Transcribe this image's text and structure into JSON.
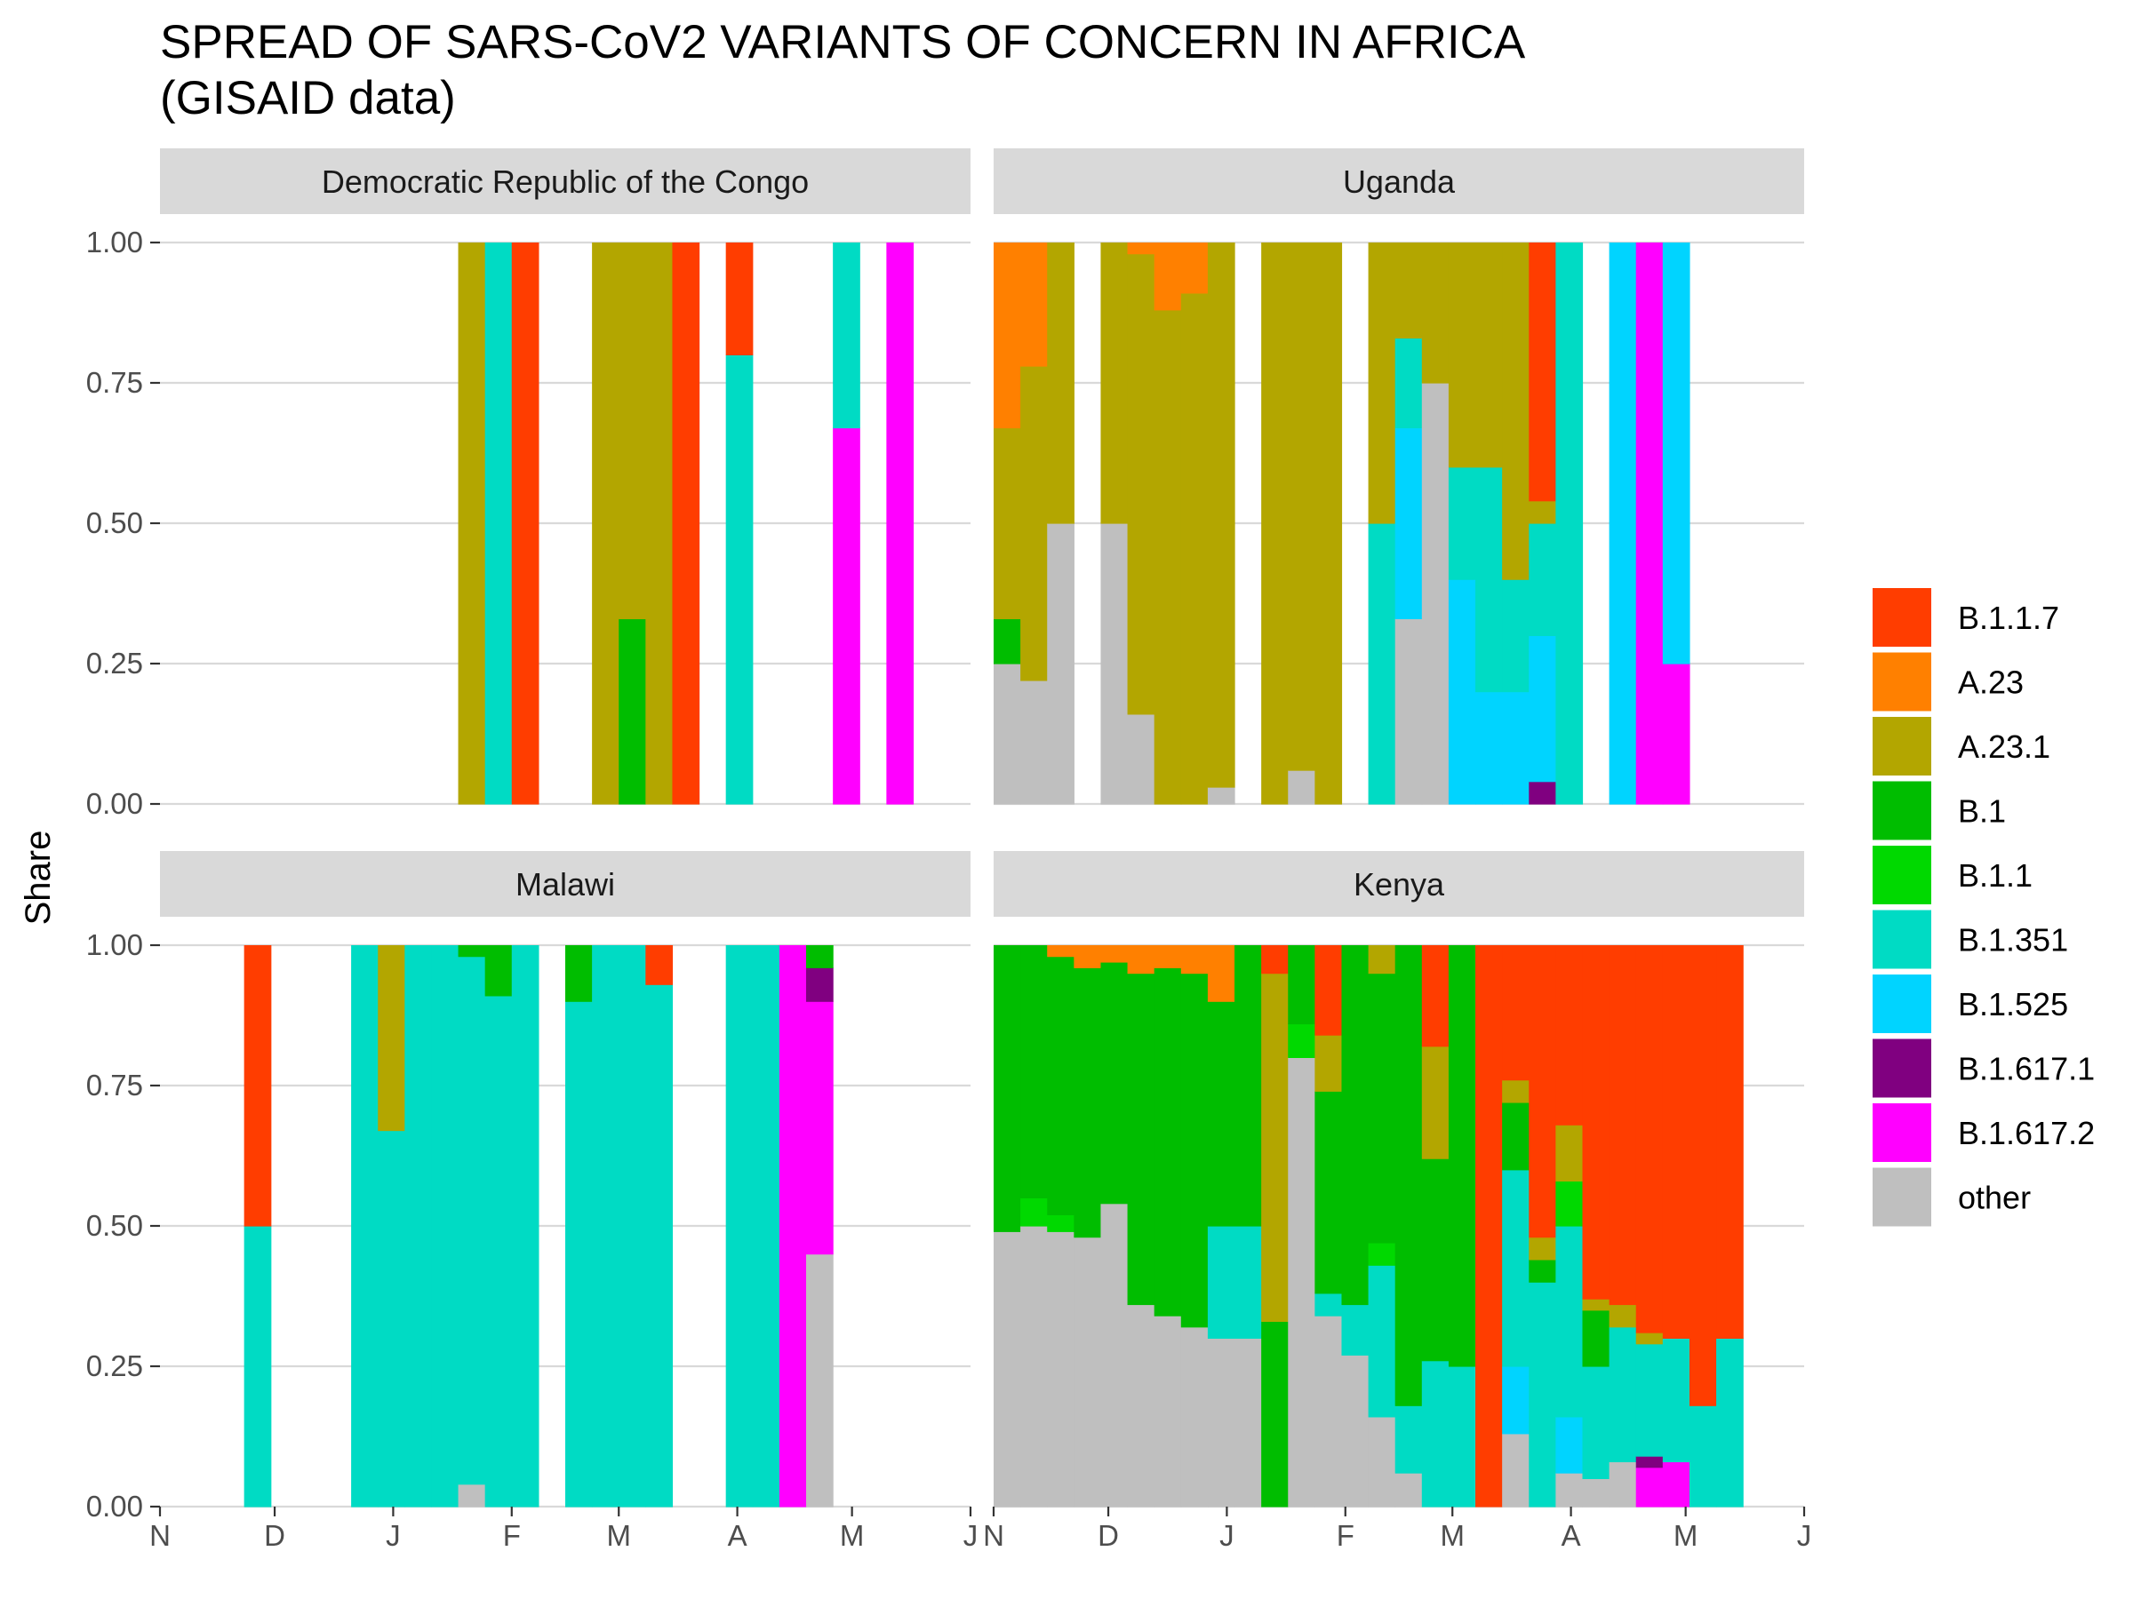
{
  "chart_data": {
    "type": "bar",
    "title_line1": "SPREAD OF SARS-CoV2 VARIANTS OF CONCERN IN AFRICA",
    "title_line2": "(GISAID data)",
    "ylabel": "Share",
    "xlabel": "",
    "ylim": [
      0,
      1
    ],
    "y_ticks": [
      "0.00",
      "0.25",
      "0.50",
      "0.75",
      "1.00"
    ],
    "x_ticks": [
      "N",
      "D",
      "J",
      "F",
      "M",
      "A",
      "M",
      "J"
    ],
    "x_range": [
      "2020-11-01",
      "2021-06-01"
    ],
    "bar_width_days": 7,
    "grid": true,
    "legend_position": "right",
    "variants": [
      "B.1.1.7",
      "A.23",
      "A.23.1",
      "B.1",
      "B.1.1",
      "B.1.351",
      "B.1.525",
      "B.1.617.1",
      "B.1.617.2",
      "other"
    ],
    "colors": {
      "B.1.1.7": "#ff3d00",
      "A.23": "#ff8000",
      "A.23.1": "#b3a600",
      "B.1": "#00bd00",
      "B.1.1": "#00d900",
      "B.1.351": "#00dbc4",
      "B.1.525": "#00d4ff",
      "B.1.617.1": "#800080",
      "B.1.617.2": "#ff00ff",
      "other": "#bfbfbf"
    },
    "panels": [
      {
        "name": "Democratic Republic of the Congo",
        "bars": [
          {
            "week_start": "2021-01-18",
            "shares": {
              "A.23.1": 1.0
            }
          },
          {
            "week_start": "2021-01-25",
            "shares": {
              "B.1.351": 1.0
            }
          },
          {
            "week_start": "2021-02-01",
            "shares": {
              "B.1.1.7": 1.0
            }
          },
          {
            "week_start": "2021-02-22",
            "shares": {
              "A.23.1": 1.0
            }
          },
          {
            "week_start": "2021-03-01",
            "shares": {
              "B.1": 0.33,
              "A.23.1": 0.67
            }
          },
          {
            "week_start": "2021-03-08",
            "shares": {
              "A.23.1": 1.0
            }
          },
          {
            "week_start": "2021-03-15",
            "shares": {
              "B.1.1.7": 1.0
            }
          },
          {
            "week_start": "2021-03-29",
            "shares": {
              "B.1.351": 0.8,
              "B.1.1.7": 0.2
            }
          },
          {
            "week_start": "2021-04-26",
            "shares": {
              "B.1.617.2": 0.67,
              "B.1.351": 0.33
            }
          },
          {
            "week_start": "2021-05-10",
            "shares": {
              "B.1.617.2": 1.0
            }
          }
        ]
      },
      {
        "name": "Uganda",
        "bars": [
          {
            "week_start": "2020-11-01",
            "shares": {
              "other": 0.25,
              "B.1": 0.08,
              "A.23.1": 0.34,
              "A.23": 0.33
            }
          },
          {
            "week_start": "2020-11-08",
            "shares": {
              "other": 0.22,
              "A.23.1": 0.56,
              "A.23": 0.22
            }
          },
          {
            "week_start": "2020-11-15",
            "shares": {
              "other": 0.5,
              "A.23.1": 0.5
            }
          },
          {
            "week_start": "2020-11-29",
            "shares": {
              "other": 0.5,
              "A.23.1": 0.5
            }
          },
          {
            "week_start": "2020-12-06",
            "shares": {
              "other": 0.16,
              "A.23.1": 0.82,
              "A.23": 0.02
            }
          },
          {
            "week_start": "2020-12-13",
            "shares": {
              "A.23.1": 0.88,
              "A.23": 0.12
            }
          },
          {
            "week_start": "2020-12-20",
            "shares": {
              "A.23.1": 0.91,
              "A.23": 0.09
            }
          },
          {
            "week_start": "2020-12-27",
            "shares": {
              "other": 0.03,
              "A.23.1": 0.97
            }
          },
          {
            "week_start": "2021-01-10",
            "shares": {
              "A.23.1": 1.0
            }
          },
          {
            "week_start": "2021-01-17",
            "shares": {
              "other": 0.06,
              "A.23.1": 0.94
            }
          },
          {
            "week_start": "2021-01-24",
            "shares": {
              "A.23.1": 1.0
            }
          },
          {
            "week_start": "2021-02-07",
            "shares": {
              "B.1.351": 0.5,
              "A.23.1": 0.5
            }
          },
          {
            "week_start": "2021-02-14",
            "shares": {
              "other": 0.33,
              "B.1.525": 0.34,
              "B.1.351": 0.16,
              "A.23.1": 0.17
            }
          },
          {
            "week_start": "2021-02-21",
            "shares": {
              "other": 0.75,
              "A.23.1": 0.25
            }
          },
          {
            "week_start": "2021-02-28",
            "shares": {
              "B.1.525": 0.4,
              "B.1.351": 0.2,
              "A.23.1": 0.4
            }
          },
          {
            "week_start": "2021-03-07",
            "shares": {
              "B.1.525": 0.2,
              "B.1.351": 0.4,
              "A.23.1": 0.4
            }
          },
          {
            "week_start": "2021-03-14",
            "shares": {
              "B.1.525": 0.2,
              "B.1.351": 0.2,
              "A.23.1": 0.6
            }
          },
          {
            "week_start": "2021-03-21",
            "shares": {
              "B.1.617.1": 0.04,
              "B.1.525": 0.26,
              "B.1.351": 0.2,
              "A.23.1": 0.04,
              "B.1.1.7": 0.46
            }
          },
          {
            "week_start": "2021-03-28",
            "shares": {
              "B.1.351": 1.0
            }
          },
          {
            "week_start": "2021-04-11",
            "shares": {
              "B.1.525": 1.0
            }
          },
          {
            "week_start": "2021-04-18",
            "shares": {
              "B.1.617.2": 1.0
            }
          },
          {
            "week_start": "2021-04-25",
            "shares": {
              "B.1.617.2": 0.25,
              "B.1.525": 0.75
            }
          }
        ]
      },
      {
        "name": "Malawi",
        "bars": [
          {
            "week_start": "2020-11-23",
            "shares": {
              "B.1.351": 0.5,
              "B.1.1.7": 0.5
            }
          },
          {
            "week_start": "2020-12-21",
            "shares": {
              "B.1.351": 1.0
            }
          },
          {
            "week_start": "2020-12-28",
            "shares": {
              "B.1.351": 0.67,
              "A.23.1": 0.33
            }
          },
          {
            "week_start": "2021-01-04",
            "shares": {
              "B.1.351": 1.0
            }
          },
          {
            "week_start": "2021-01-11",
            "shares": {
              "B.1.351": 1.0
            }
          },
          {
            "week_start": "2021-01-18",
            "shares": {
              "other": 0.04,
              "B.1.351": 0.94,
              "B.1": 0.02
            }
          },
          {
            "week_start": "2021-01-25",
            "shares": {
              "B.1.351": 0.91,
              "B.1": 0.09
            }
          },
          {
            "week_start": "2021-02-01",
            "shares": {
              "B.1.351": 1.0
            }
          },
          {
            "week_start": "2021-02-15",
            "shares": {
              "B.1.351": 0.9,
              "B.1": 0.1
            }
          },
          {
            "week_start": "2021-02-22",
            "shares": {
              "B.1.351": 1.0
            }
          },
          {
            "week_start": "2021-03-01",
            "shares": {
              "B.1.351": 1.0
            }
          },
          {
            "week_start": "2021-03-08",
            "shares": {
              "B.1.351": 0.93,
              "B.1.1.7": 0.07
            }
          },
          {
            "week_start": "2021-03-29",
            "shares": {
              "B.1.351": 1.0
            }
          },
          {
            "week_start": "2021-04-05",
            "shares": {
              "B.1.351": 1.0
            }
          },
          {
            "week_start": "2021-04-12",
            "shares": {
              "B.1.617.2": 1.0
            }
          },
          {
            "week_start": "2021-04-19",
            "shares": {
              "other": 0.45,
              "B.1.617.2": 0.45,
              "B.1.617.1": 0.06,
              "B.1": 0.04
            }
          }
        ]
      },
      {
        "name": "Kenya",
        "bars": [
          {
            "week_start": "2020-11-01",
            "shares": {
              "other": 0.49,
              "B.1": 0.51
            }
          },
          {
            "week_start": "2020-11-08",
            "shares": {
              "other": 0.5,
              "B.1.1": 0.05,
              "B.1": 0.45
            }
          },
          {
            "week_start": "2020-11-15",
            "shares": {
              "other": 0.49,
              "B.1.1": 0.03,
              "B.1": 0.46,
              "A.23": 0.02
            }
          },
          {
            "week_start": "2020-11-22",
            "shares": {
              "other": 0.48,
              "B.1": 0.48,
              "A.23": 0.04
            }
          },
          {
            "week_start": "2020-11-29",
            "shares": {
              "other": 0.54,
              "B.1": 0.43,
              "A.23": 0.03
            }
          },
          {
            "week_start": "2020-12-06",
            "shares": {
              "other": 0.36,
              "B.1": 0.59,
              "A.23": 0.05
            }
          },
          {
            "week_start": "2020-12-13",
            "shares": {
              "other": 0.34,
              "B.1": 0.62,
              "A.23": 0.04
            }
          },
          {
            "week_start": "2020-12-20",
            "shares": {
              "other": 0.32,
              "B.1": 0.63,
              "A.23": 0.05
            }
          },
          {
            "week_start": "2020-12-27",
            "shares": {
              "other": 0.3,
              "B.1.351": 0.2,
              "B.1": 0.4,
              "A.23": 0.1
            }
          },
          {
            "week_start": "2021-01-03",
            "shares": {
              "other": 0.3,
              "B.1.351": 0.2,
              "B.1": 0.5
            }
          },
          {
            "week_start": "2021-01-10",
            "shares": {
              "B.1": 0.33,
              "A.23.1": 0.62,
              "B.1.1.7": 0.05
            }
          },
          {
            "week_start": "2021-01-17",
            "shares": {
              "other": 0.8,
              "B.1.1": 0.06,
              "B.1": 0.14
            }
          },
          {
            "week_start": "2021-01-24",
            "shares": {
              "other": 0.34,
              "B.1.351": 0.04,
              "B.1": 0.36,
              "A.23.1": 0.1,
              "B.1.1.7": 0.16
            }
          },
          {
            "week_start": "2021-01-31",
            "shares": {
              "other": 0.27,
              "B.1.351": 0.09,
              "B.1": 0.64
            }
          },
          {
            "week_start": "2021-02-07",
            "shares": {
              "other": 0.16,
              "B.1.351": 0.27,
              "B.1.1": 0.04,
              "B.1": 0.48,
              "A.23.1": 0.05
            }
          },
          {
            "week_start": "2021-02-14",
            "shares": {
              "other": 0.06,
              "B.1.351": 0.12,
              "B.1": 0.82
            }
          },
          {
            "week_start": "2021-02-21",
            "shares": {
              "B.1.351": 0.26,
              "B.1": 0.36,
              "A.23.1": 0.2,
              "B.1.1.7": 0.18
            }
          },
          {
            "week_start": "2021-02-28",
            "shares": {
              "B.1.351": 0.25,
              "B.1": 0.75
            }
          },
          {
            "week_start": "2021-03-07",
            "shares": {
              "B.1.1.7": 1.0
            }
          },
          {
            "week_start": "2021-03-14",
            "shares": {
              "other": 0.13,
              "B.1.525": 0.12,
              "B.1.351": 0.35,
              "B.1": 0.12,
              "A.23.1": 0.04,
              "B.1.1.7": 0.24
            }
          },
          {
            "week_start": "2021-03-21",
            "shares": {
              "B.1.351": 0.4,
              "B.1": 0.04,
              "A.23.1": 0.04,
              "B.1.1.7": 0.52
            }
          },
          {
            "week_start": "2021-03-28",
            "shares": {
              "other": 0.06,
              "B.1.525": 0.1,
              "B.1.351": 0.34,
              "B.1.1": 0.08,
              "A.23.1": 0.1,
              "B.1.1.7": 0.32
            }
          },
          {
            "week_start": "2021-04-04",
            "shares": {
              "other": 0.05,
              "B.1.351": 0.2,
              "B.1": 0.1,
              "A.23.1": 0.02,
              "B.1.1.7": 0.63
            }
          },
          {
            "week_start": "2021-04-11",
            "shares": {
              "other": 0.08,
              "B.1.351": 0.24,
              "A.23.1": 0.04,
              "B.1.1.7": 0.64
            }
          },
          {
            "week_start": "2021-04-18",
            "shares": {
              "B.1.617.2": 0.07,
              "B.1.617.1": 0.02,
              "B.1.351": 0.2,
              "A.23.1": 0.02,
              "B.1.1.7": 0.69
            }
          },
          {
            "week_start": "2021-04-25",
            "shares": {
              "B.1.617.2": 0.08,
              "B.1.351": 0.22,
              "B.1.1.7": 0.7
            }
          },
          {
            "week_start": "2021-05-02",
            "shares": {
              "B.1.351": 0.18,
              "B.1.1.7": 0.82
            }
          },
          {
            "week_start": "2021-05-09",
            "shares": {
              "B.1.351": 0.3,
              "B.1.1.7": 0.7
            }
          }
        ]
      }
    ]
  }
}
